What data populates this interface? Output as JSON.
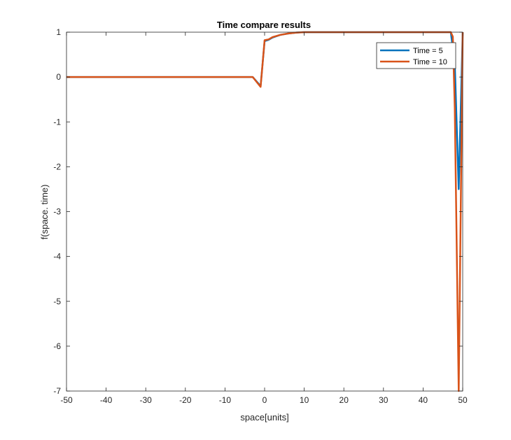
{
  "chart_data": {
    "type": "line",
    "title": "Time compare results",
    "xlabel": "space[units]",
    "ylabel": "f(space. time)",
    "xlim": [
      -50,
      50
    ],
    "ylim": [
      -7,
      1
    ],
    "xticks": [
      "-50",
      "-40",
      "-30",
      "-20",
      "-10",
      "0",
      "10",
      "20",
      "30",
      "40",
      "50"
    ],
    "yticks": [
      "1",
      "0",
      "-1",
      "-2",
      "-3",
      "-4",
      "-5",
      "-6",
      "-7"
    ],
    "grid": false,
    "legend_position": "top-right",
    "series": [
      {
        "name": "Time = 5",
        "color": "#0072BD",
        "x": [
          -50,
          -3,
          -1,
          0,
          1,
          2,
          4,
          6,
          8,
          10,
          47,
          48,
          49,
          50
        ],
        "y": [
          0,
          0,
          -0.2,
          0.8,
          0.83,
          0.88,
          0.94,
          0.97,
          0.99,
          1,
          1,
          0.3,
          -2.5,
          1
        ]
      },
      {
        "name": "Time = 10",
        "color": "#D95319",
        "x": [
          -50,
          -3,
          -1,
          0,
          1,
          2,
          4,
          6,
          8,
          10,
          47,
          47.5,
          48,
          49,
          50
        ],
        "y": [
          0,
          0,
          -0.22,
          0.82,
          0.84,
          0.89,
          0.94,
          0.97,
          0.99,
          1,
          1,
          0.9,
          -0.7,
          -7,
          1
        ]
      }
    ]
  }
}
